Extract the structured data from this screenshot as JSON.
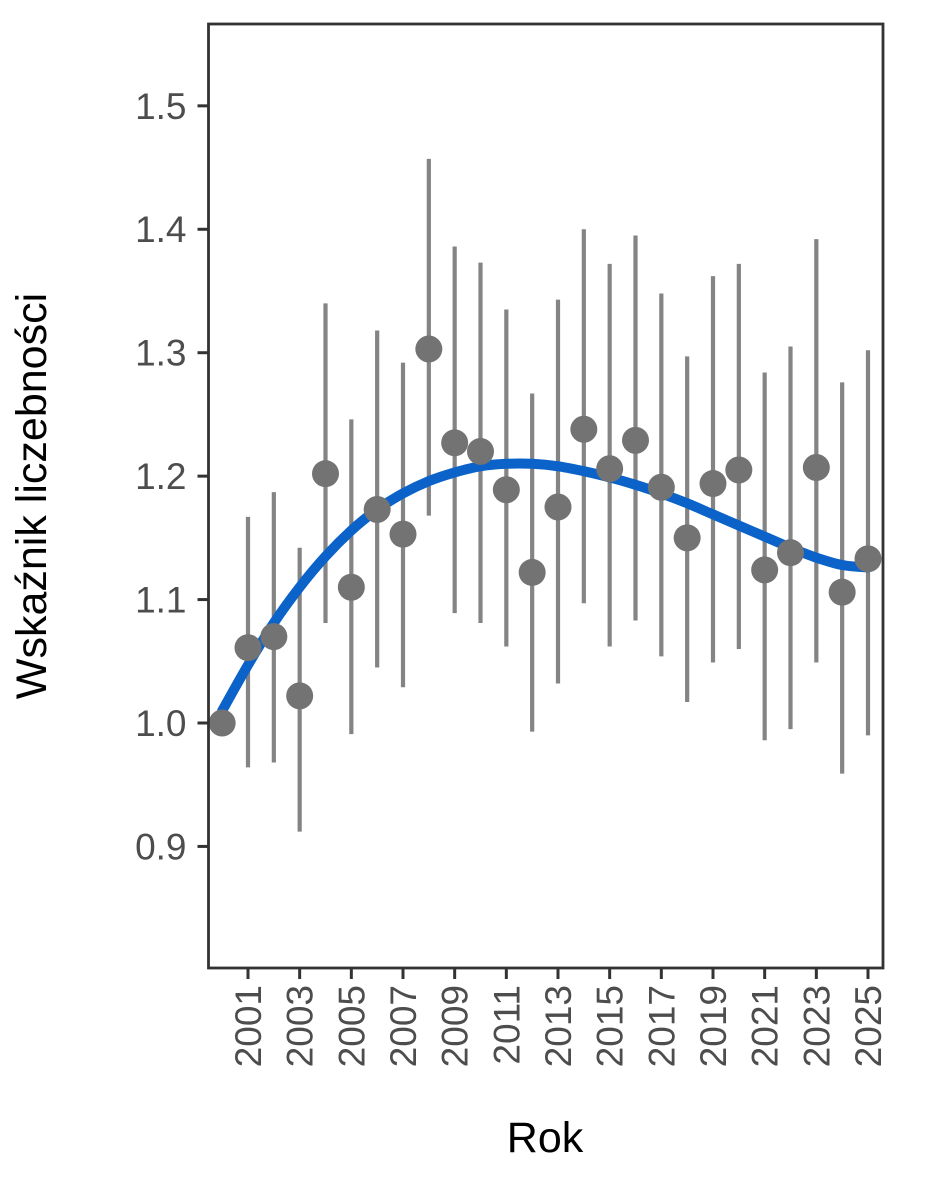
{
  "figure": {
    "background": "#ffffff"
  },
  "chart_data": {
    "type": "scatter",
    "subtype": "pointrange-with-smooth-trend",
    "title": "",
    "xlabel": "Rok",
    "ylabel": "Wskaźnik liczebności",
    "xlim": [
      1999.45,
      2025.6
    ],
    "ylim": [
      0.8,
      1.566
    ],
    "grid": false,
    "legend_position": "none",
    "x_ticks": [
      2001,
      2003,
      2005,
      2007,
      2009,
      2011,
      2013,
      2015,
      2017,
      2019,
      2021,
      2023,
      2025
    ],
    "x_tick_labels": [
      "2001",
      "2003",
      "2005",
      "2007",
      "2009",
      "2011",
      "2013",
      "2015",
      "2017",
      "2019",
      "2021",
      "2023",
      "2025"
    ],
    "y_ticks": [
      0.9,
      1.0,
      1.1,
      1.2,
      1.3,
      1.4,
      1.5
    ],
    "y_tick_labels": [
      "0.9",
      "1.0",
      "1.1",
      "1.2",
      "1.3",
      "1.4",
      "1.5"
    ],
    "series": [
      {
        "name": "abundance-index-pointrange",
        "type": "pointrange",
        "point_color": "#737373",
        "bar_color": "#848484",
        "points": [
          {
            "year": 2000,
            "value": 1.0,
            "lo": null,
            "hi": null
          },
          {
            "year": 2001,
            "value": 1.061,
            "lo": 0.964,
            "hi": 1.167
          },
          {
            "year": 2002,
            "value": 1.07,
            "lo": 0.968,
            "hi": 1.187
          },
          {
            "year": 2003,
            "value": 1.022,
            "lo": 0.912,
            "hi": 1.142
          },
          {
            "year": 2004,
            "value": 1.202,
            "lo": 1.081,
            "hi": 1.34
          },
          {
            "year": 2005,
            "value": 1.11,
            "lo": 0.991,
            "hi": 1.246
          },
          {
            "year": 2006,
            "value": 1.173,
            "lo": 1.045,
            "hi": 1.318
          },
          {
            "year": 2007,
            "value": 1.153,
            "lo": 1.029,
            "hi": 1.292
          },
          {
            "year": 2008,
            "value": 1.303,
            "lo": 1.168,
            "hi": 1.457
          },
          {
            "year": 2009,
            "value": 1.227,
            "lo": 1.089,
            "hi": 1.386
          },
          {
            "year": 2010,
            "value": 1.22,
            "lo": 1.081,
            "hi": 1.373
          },
          {
            "year": 2011,
            "value": 1.189,
            "lo": 1.062,
            "hi": 1.335
          },
          {
            "year": 2012,
            "value": 1.122,
            "lo": 0.993,
            "hi": 1.267
          },
          {
            "year": 2013,
            "value": 1.175,
            "lo": 1.032,
            "hi": 1.343
          },
          {
            "year": 2014,
            "value": 1.238,
            "lo": 1.097,
            "hi": 1.4
          },
          {
            "year": 2015,
            "value": 1.206,
            "lo": 1.062,
            "hi": 1.372
          },
          {
            "year": 2016,
            "value": 1.229,
            "lo": 1.083,
            "hi": 1.395
          },
          {
            "year": 2017,
            "value": 1.191,
            "lo": 1.054,
            "hi": 1.348
          },
          {
            "year": 2018,
            "value": 1.15,
            "lo": 1.017,
            "hi": 1.297
          },
          {
            "year": 2019,
            "value": 1.194,
            "lo": 1.049,
            "hi": 1.362
          },
          {
            "year": 2020,
            "value": 1.205,
            "lo": 1.06,
            "hi": 1.372
          },
          {
            "year": 2021,
            "value": 1.124,
            "lo": 0.986,
            "hi": 1.284
          },
          {
            "year": 2022,
            "value": 1.138,
            "lo": 0.995,
            "hi": 1.305
          },
          {
            "year": 2023,
            "value": 1.207,
            "lo": 1.049,
            "hi": 1.392
          },
          {
            "year": 2024,
            "value": 1.106,
            "lo": 0.959,
            "hi": 1.276
          },
          {
            "year": 2025,
            "value": 1.133,
            "lo": 0.99,
            "hi": 1.302
          }
        ]
      },
      {
        "name": "smoothed-trend",
        "type": "line",
        "color": "#0b62c8",
        "x": [
          2000,
          2001,
          2002,
          2003,
          2004,
          2005,
          2006,
          2007,
          2008,
          2009,
          2010,
          2011,
          2012,
          2013,
          2014,
          2015,
          2016,
          2017,
          2018,
          2019,
          2020,
          2021,
          2022,
          2023,
          2024,
          2025
        ],
        "y": [
          1.01,
          1.047,
          1.081,
          1.11,
          1.135,
          1.156,
          1.173,
          1.186,
          1.196,
          1.203,
          1.208,
          1.21,
          1.21,
          1.208,
          1.204,
          1.199,
          1.193,
          1.186,
          1.178,
          1.169,
          1.16,
          1.151,
          1.142,
          1.134,
          1.128,
          1.126
        ]
      }
    ]
  },
  "colors": {
    "axis_line": "#333333",
    "tick_label": "#4d4d4d",
    "axis_title": "#000000",
    "point": "#737373",
    "error_bar": "#848484",
    "trend_line": "#0b62c8",
    "background": "#ffffff"
  }
}
